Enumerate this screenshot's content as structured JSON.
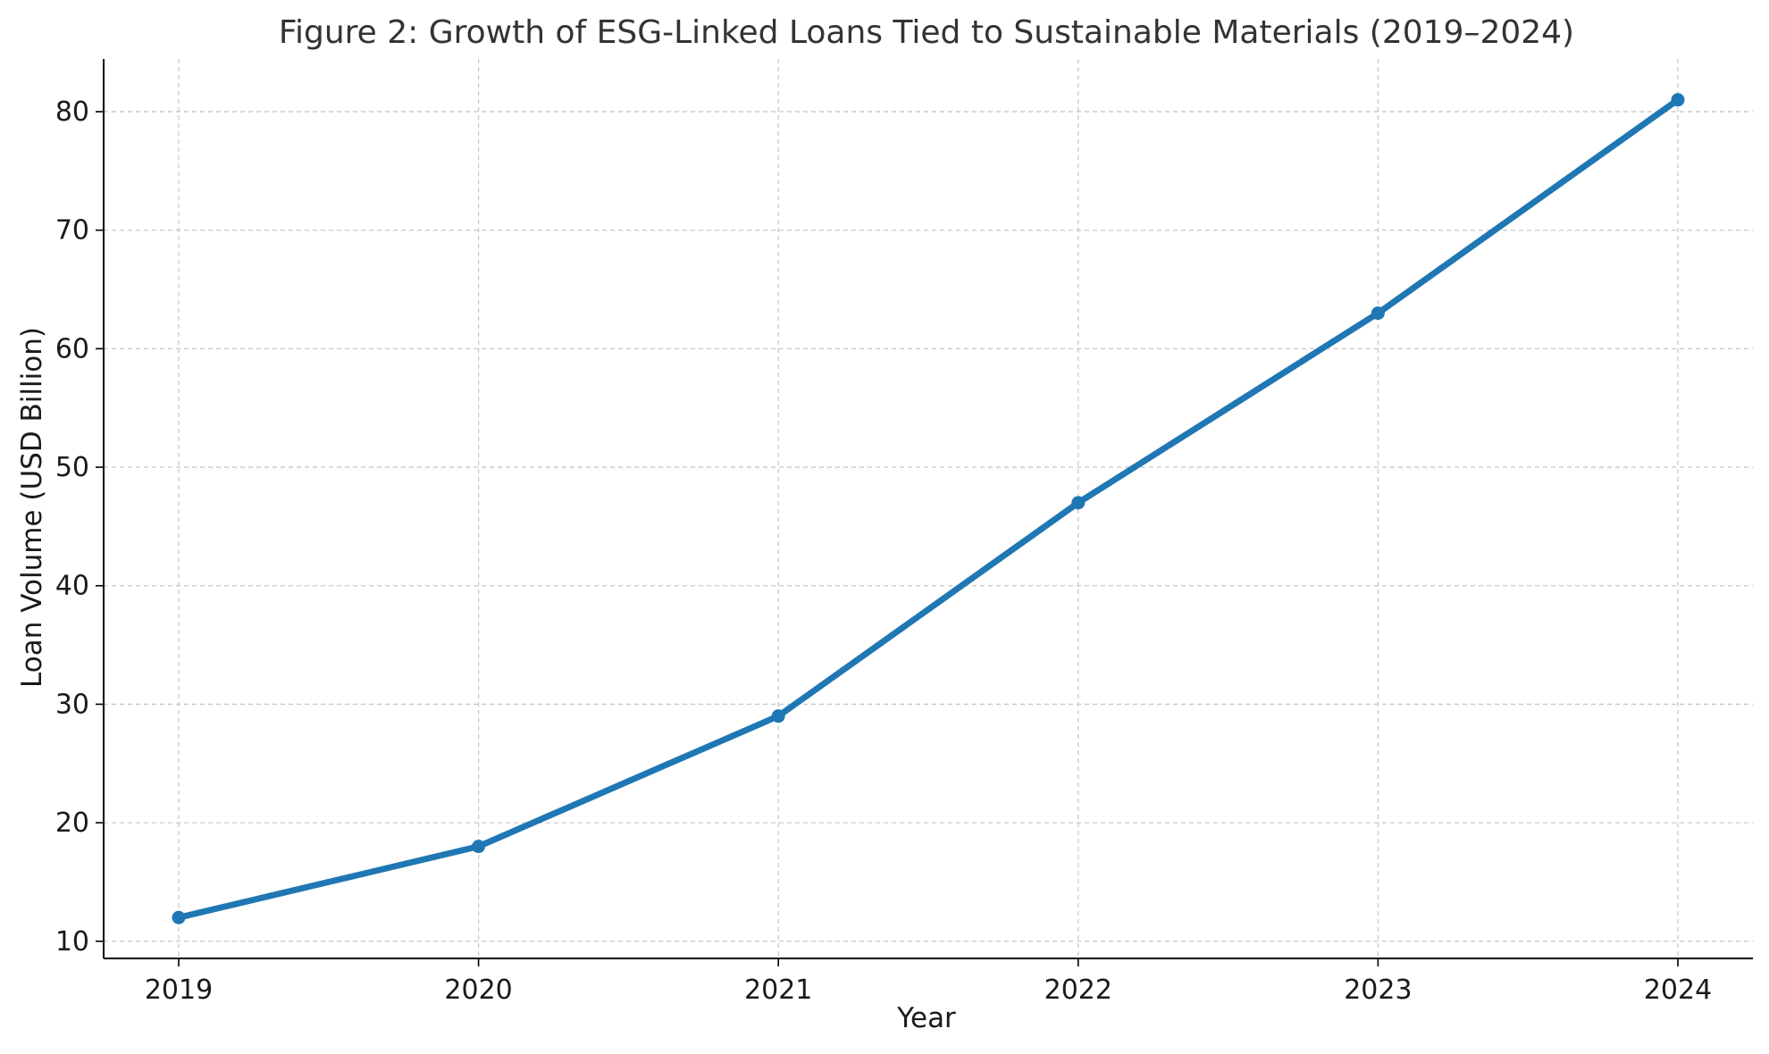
{
  "chart_data": {
    "type": "line",
    "title": "Figure 2: Growth of ESG-Linked Loans Tied to Sustainable Materials (2019–2024)",
    "xlabel": "Year",
    "ylabel": "Loan Volume (USD Billion)",
    "categories": [
      "2019",
      "2020",
      "2021",
      "2022",
      "2023",
      "2024"
    ],
    "series": [
      {
        "values": [
          12,
          18,
          29,
          47,
          63,
          81
        ],
        "color": "#1f77b4"
      }
    ],
    "x_ticks": [
      "2019",
      "2020",
      "2021",
      "2022",
      "2023",
      "2024"
    ],
    "y_ticks": [
      10,
      20,
      30,
      40,
      50,
      60,
      70,
      80
    ],
    "ylim": [
      8.55,
      84.45
    ],
    "grid": true,
    "grid_style": "dashed",
    "legend": "none",
    "colors": {
      "line": "#1f77b4",
      "grid": "#c8c8c8",
      "axis": "#000000",
      "title": "#333333"
    }
  }
}
